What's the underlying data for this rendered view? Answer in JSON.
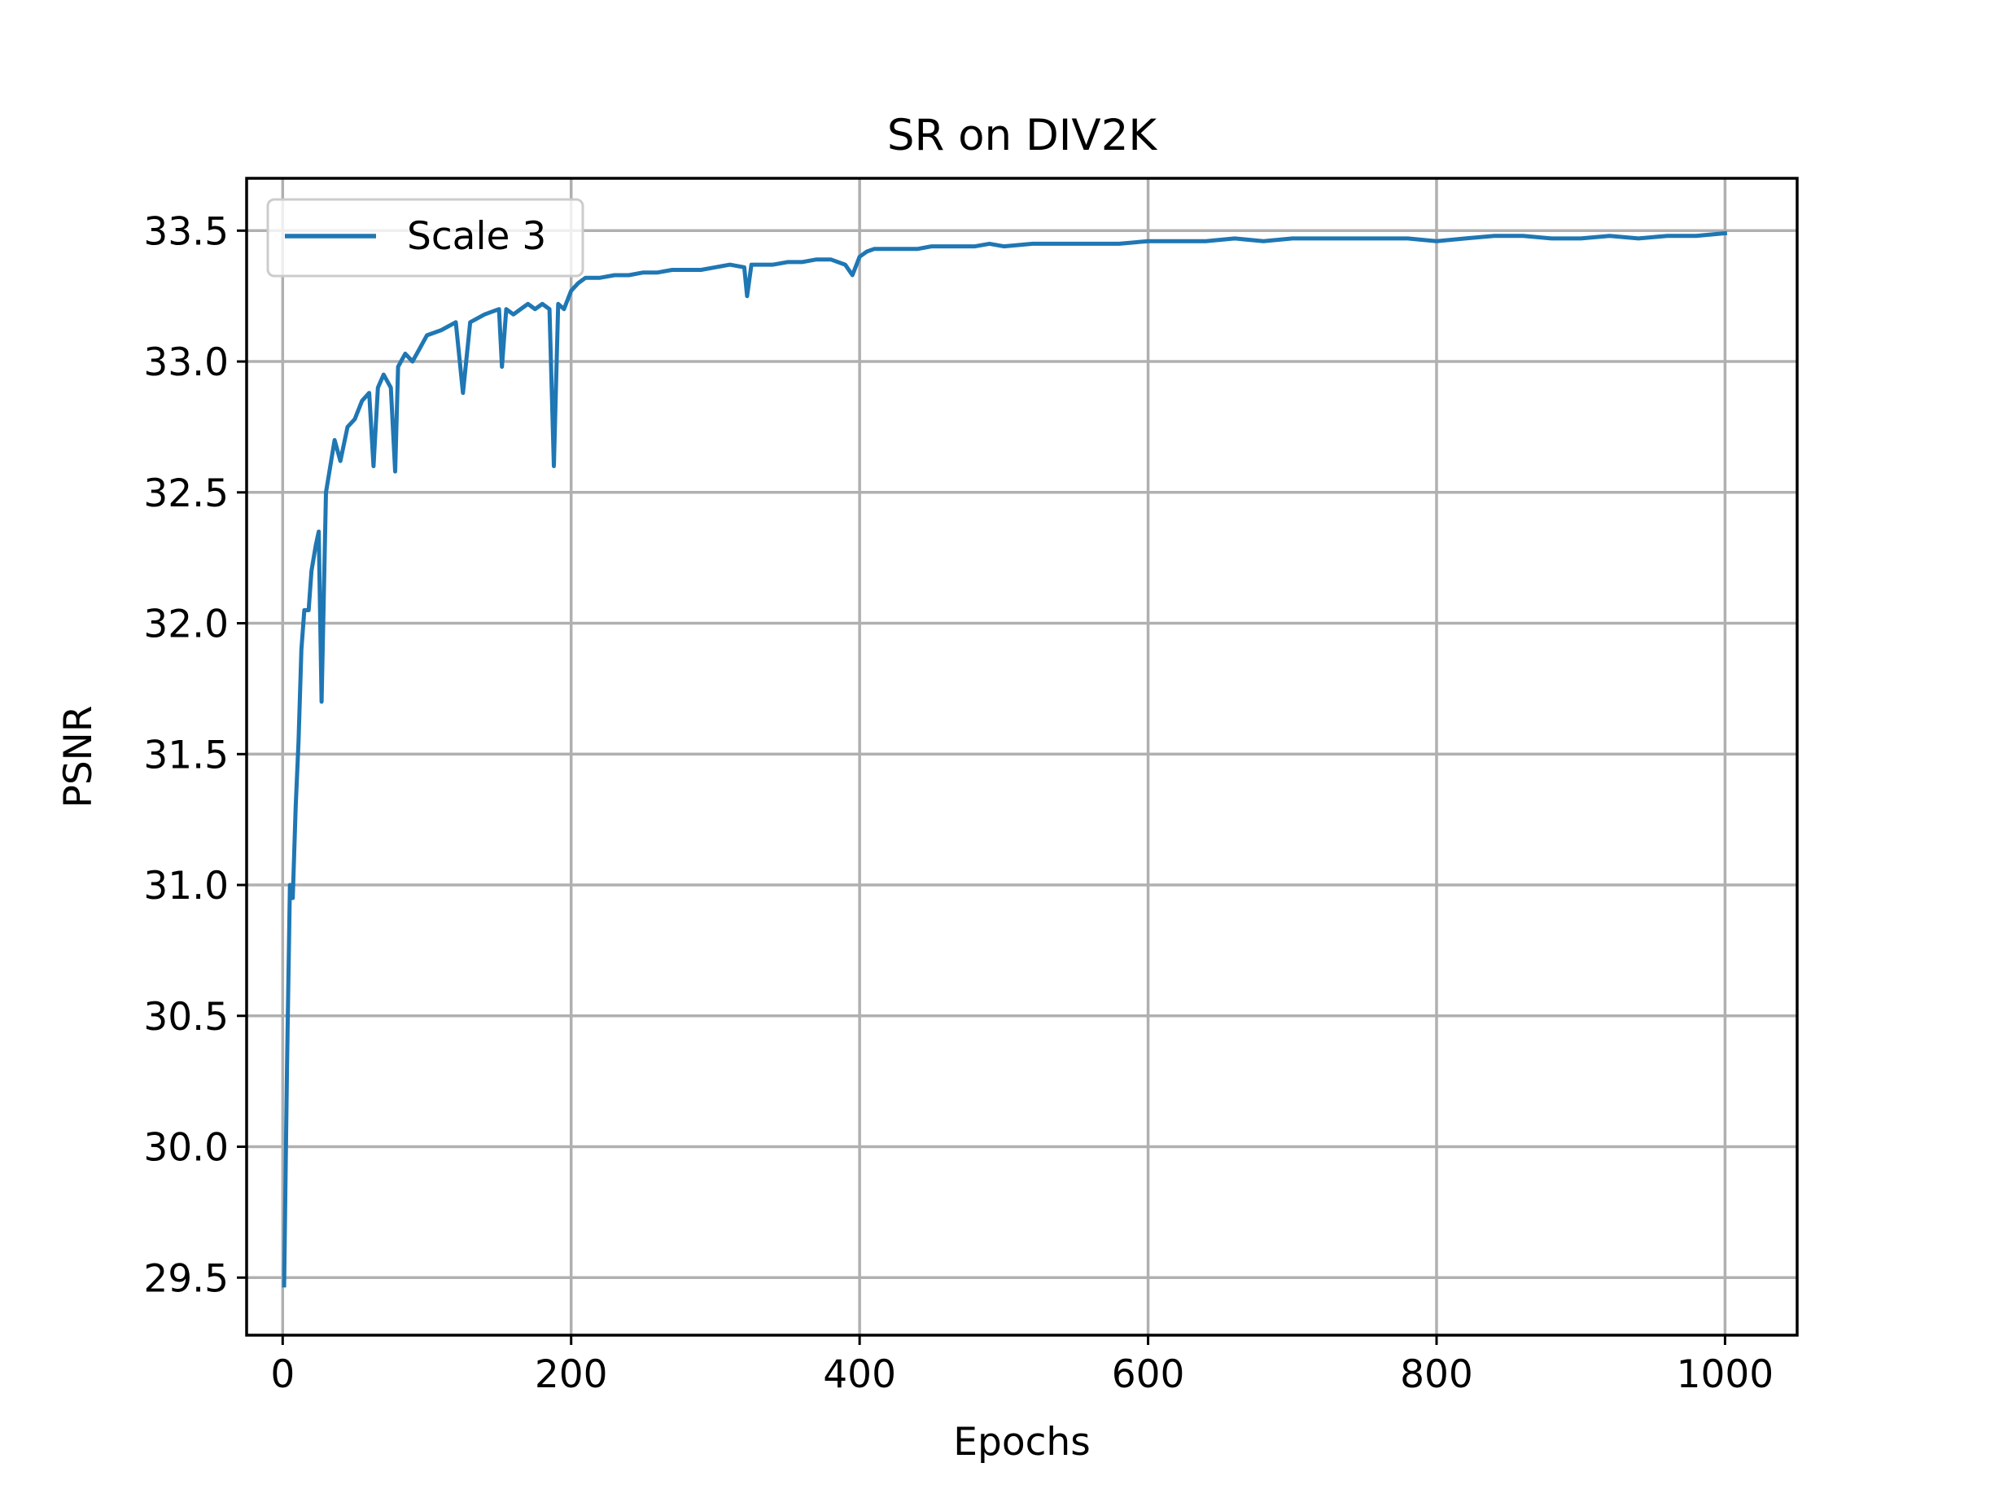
{
  "chart_data": {
    "type": "line",
    "title": "SR on DIV2K",
    "xlabel": "Epochs",
    "ylabel": "PSNR",
    "xlim": [
      -25,
      1050
    ],
    "ylim": [
      29.28,
      33.7
    ],
    "xticks": [
      0,
      200,
      400,
      600,
      800,
      1000
    ],
    "xtick_labels": [
      "0",
      "200",
      "400",
      "600",
      "800",
      "1000"
    ],
    "yticks": [
      29.5,
      30.0,
      30.5,
      31.0,
      31.5,
      32.0,
      32.5,
      33.0,
      33.5
    ],
    "ytick_labels": [
      "29.5",
      "30.0",
      "30.5",
      "31.0",
      "31.5",
      "32.0",
      "32.5",
      "33.0",
      "33.5"
    ],
    "grid": true,
    "legend_position": "top-left",
    "series": [
      {
        "name": "Scale 3",
        "color": "#1f77b4",
        "x": [
          1,
          3,
          5,
          7,
          9,
          11,
          13,
          15,
          18,
          20,
          23,
          25,
          27,
          30,
          33,
          36,
          40,
          45,
          50,
          55,
          60,
          63,
          66,
          70,
          75,
          78,
          80,
          85,
          90,
          95,
          100,
          110,
          120,
          125,
          130,
          140,
          150,
          152,
          155,
          160,
          165,
          170,
          175,
          180,
          185,
          188,
          191,
          195,
          200,
          205,
          210,
          220,
          230,
          240,
          250,
          260,
          270,
          280,
          290,
          300,
          310,
          320,
          322,
          325,
          330,
          340,
          350,
          360,
          370,
          380,
          390,
          395,
          400,
          405,
          410,
          420,
          430,
          440,
          450,
          460,
          470,
          480,
          490,
          500,
          520,
          540,
          560,
          580,
          600,
          620,
          640,
          660,
          680,
          700,
          720,
          740,
          760,
          780,
          800,
          820,
          840,
          860,
          880,
          900,
          920,
          940,
          960,
          980,
          1000
        ],
        "values": [
          29.47,
          30.3,
          31.0,
          30.95,
          31.3,
          31.55,
          31.9,
          32.05,
          32.05,
          32.2,
          32.3,
          32.35,
          31.7,
          32.5,
          32.6,
          32.7,
          32.62,
          32.75,
          32.78,
          32.85,
          32.88,
          32.6,
          32.9,
          32.95,
          32.9,
          32.58,
          32.98,
          33.03,
          33.0,
          33.05,
          33.1,
          33.12,
          33.15,
          32.88,
          33.15,
          33.18,
          33.2,
          32.98,
          33.2,
          33.18,
          33.2,
          33.22,
          33.2,
          33.22,
          33.2,
          32.6,
          33.22,
          33.2,
          33.27,
          33.3,
          33.32,
          33.32,
          33.33,
          33.33,
          33.34,
          33.34,
          33.35,
          33.35,
          33.35,
          33.36,
          33.37,
          33.36,
          33.25,
          33.37,
          33.37,
          33.37,
          33.38,
          33.38,
          33.39,
          33.39,
          33.37,
          33.33,
          33.4,
          33.42,
          33.43,
          33.43,
          33.43,
          33.43,
          33.44,
          33.44,
          33.44,
          33.44,
          33.45,
          33.44,
          33.45,
          33.45,
          33.45,
          33.45,
          33.46,
          33.46,
          33.46,
          33.47,
          33.46,
          33.47,
          33.47,
          33.47,
          33.47,
          33.47,
          33.46,
          33.47,
          33.48,
          33.48,
          33.47,
          33.47,
          33.48,
          33.47,
          33.48,
          33.48,
          33.49
        ]
      }
    ]
  }
}
